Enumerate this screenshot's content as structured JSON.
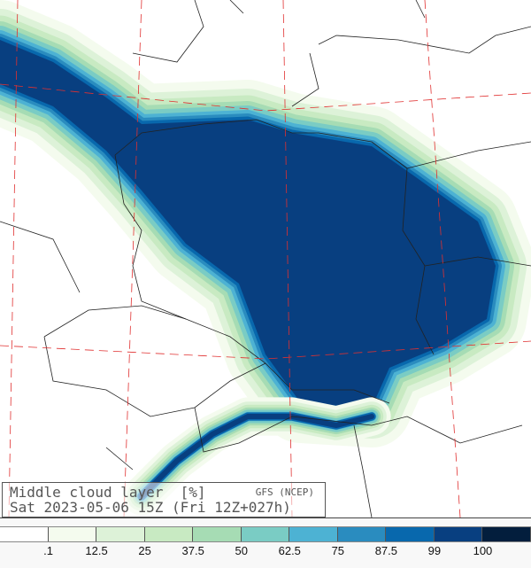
{
  "caption": {
    "title": "Middle cloud layer  [%]",
    "model": "GFS (NCEP)",
    "time": "Sat 2023-05-06 15Z (Fri 12Z+027h)"
  },
  "legend": {
    "colors": [
      "#ffffff",
      "#f4fbee",
      "#ddf2d8",
      "#c8eac2",
      "#a6dcb4",
      "#7accc4",
      "#4db2d3",
      "#2a8cbf",
      "#0868ad",
      "#083f80",
      "#031e3d"
    ],
    "ticks": [
      ".1",
      "12.5",
      "25",
      "37.5",
      "50",
      "62.5",
      "75",
      "87.5",
      "99",
      "100"
    ]
  }
}
